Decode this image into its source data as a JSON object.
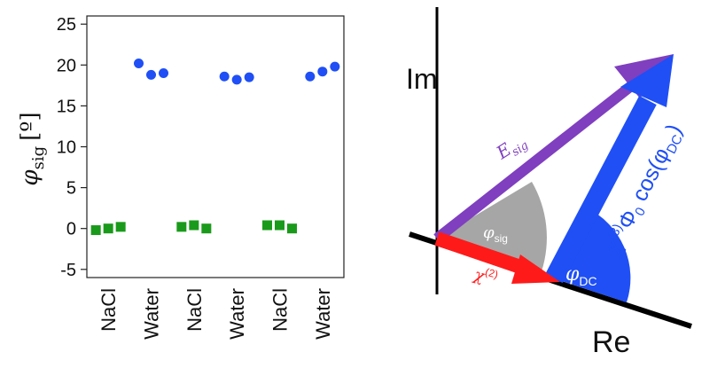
{
  "chart_data": {
    "type": "scatter",
    "ylabel": "φsig [º]",
    "ylabel_base": "φ",
    "ylabel_sub": "sig",
    "ylabel_unit": "[º]",
    "ylim": [
      -6,
      26
    ],
    "yticks": [
      25,
      20,
      15,
      10,
      5,
      0,
      -5
    ],
    "ytick_labels": [
      "25",
      "20",
      "15",
      "10",
      "5",
      "0",
      "-5"
    ],
    "categories": [
      "NaCl",
      "Water",
      "NaCl",
      "Water",
      "NaCl",
      "Water"
    ],
    "grid": false,
    "series": [
      {
        "marker": "square",
        "color": "#1a9a1a",
        "points": [
          {
            "x": 1,
            "y": -0.2
          },
          {
            "x": 1,
            "y": 0.0
          },
          {
            "x": 1,
            "y": 0.2
          },
          {
            "x": 3,
            "y": 0.2
          },
          {
            "x": 3,
            "y": 0.4
          },
          {
            "x": 3,
            "y": 0.0
          },
          {
            "x": 5,
            "y": 0.4
          },
          {
            "x": 5,
            "y": 0.4
          },
          {
            "x": 5,
            "y": 0.0
          }
        ]
      },
      {
        "marker": "circle",
        "color": "#1f4ff5",
        "points": [
          {
            "x": 2,
            "y": 20.2
          },
          {
            "x": 2,
            "y": 18.8
          },
          {
            "x": 2,
            "y": 19.0
          },
          {
            "x": 4,
            "y": 18.6
          },
          {
            "x": 4,
            "y": 18.2
          },
          {
            "x": 4,
            "y": 18.5
          },
          {
            "x": 6,
            "y": 18.6
          },
          {
            "x": 6,
            "y": 19.2
          },
          {
            "x": 6,
            "y": 19.8
          }
        ]
      }
    ]
  },
  "diagram": {
    "im_label": "Im",
    "re_label": "Re",
    "e_sig": {
      "base": "E",
      "sub": "sig"
    },
    "chi2": {
      "base": "χ",
      "sup": "(2)"
    },
    "phi_sig": {
      "base": "φ",
      "sub": "sig"
    },
    "phi_dc": {
      "base": "φ",
      "sub": "DC"
    },
    "chi3_term": {
      "base": "χ",
      "sup": "(3)",
      "mid": "Φ",
      "mid_sub": "0",
      "func": " cos(φ",
      "func_sub": "DC",
      "close": ")"
    },
    "colors": {
      "e_sig": "#7f3fbf",
      "chi2": "#ff1a1a",
      "chi3": "#1f4ff5",
      "phi_sig_wedge": "#a6a6a6",
      "phi_dc_wedge": "#1f4ff5",
      "axes": "#000000"
    }
  }
}
